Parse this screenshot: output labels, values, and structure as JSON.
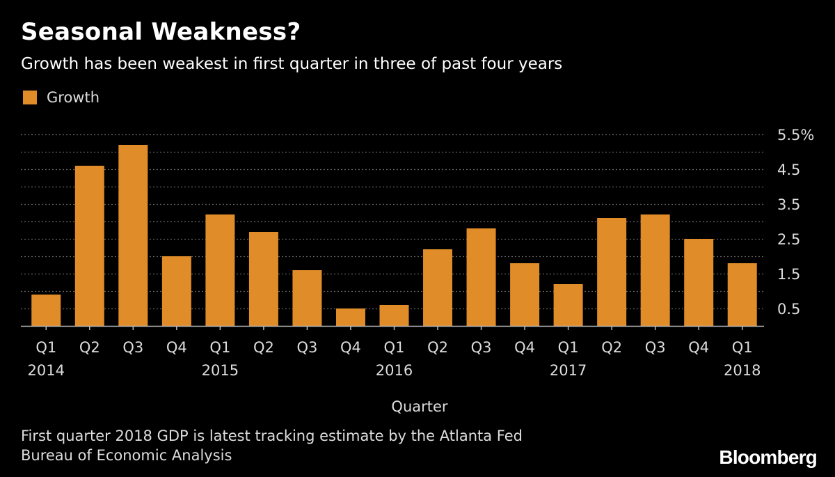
{
  "title": "Seasonal Weakness?",
  "subtitle": "Growth has been weakest in first quarter in three of past four years",
  "legend": {
    "label": "Growth"
  },
  "colors": {
    "bar": "#e08c28",
    "background": "#000000",
    "grid": "#666666",
    "text": "#dddddd"
  },
  "footnotes": [
    "First quarter 2018 GDP is latest tracking estimate by the Atlanta Fed",
    "Bureau of Economic Analysis"
  ],
  "logo": "Bloomberg",
  "chart_data": {
    "type": "bar",
    "xlabel": "Quarter",
    "ylabel": "",
    "ylim": [
      0,
      5.5
    ],
    "yticks": [
      0.5,
      1.5,
      2.5,
      3.5,
      4.5,
      5.5
    ],
    "ytick_labels": [
      "0.5",
      "1.5",
      "2.5",
      "3.5",
      "4.5",
      "5.5%"
    ],
    "grid": true,
    "legend_position": "top-left",
    "categories": [
      "Q1",
      "Q2",
      "Q3",
      "Q4",
      "Q1",
      "Q2",
      "Q3",
      "Q4",
      "Q1",
      "Q2",
      "Q3",
      "Q4",
      "Q1",
      "Q2",
      "Q3",
      "Q4",
      "Q1"
    ],
    "year_labels": [
      "2014",
      "",
      "",
      "",
      "2015",
      "",
      "",
      "",
      "2016",
      "",
      "",
      "",
      "2017",
      "",
      "",
      "",
      "2018"
    ],
    "series": [
      {
        "name": "Growth",
        "values": [
          0.9,
          4.6,
          5.2,
          2.0,
          3.2,
          2.7,
          1.6,
          0.5,
          0.6,
          2.2,
          2.8,
          1.8,
          1.2,
          3.1,
          3.2,
          2.5,
          1.8
        ]
      }
    ]
  }
}
